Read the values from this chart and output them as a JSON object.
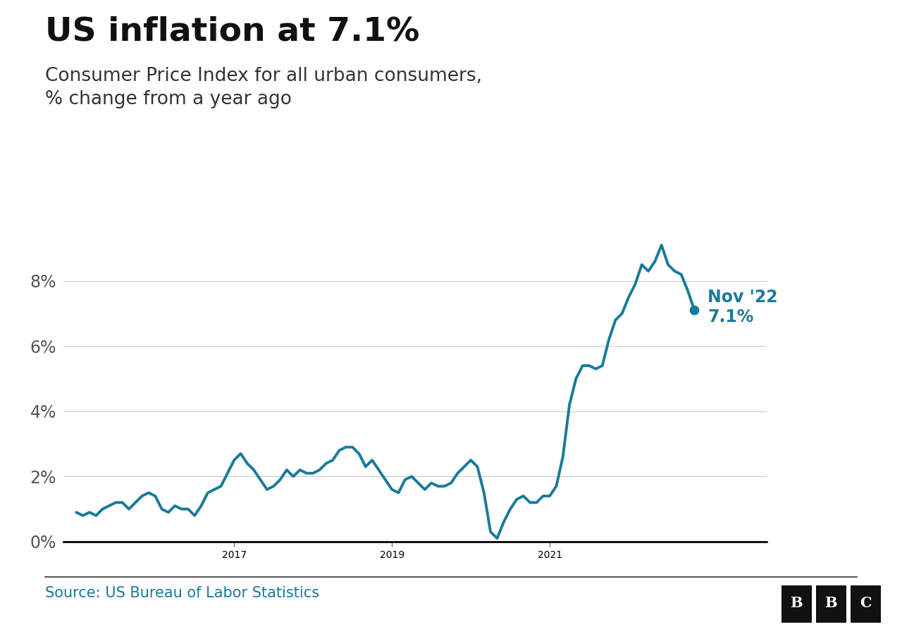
{
  "title": "US inflation at 7.1%",
  "subtitle": "Consumer Price Index for all urban consumers,\n% change from a year ago",
  "source": "Source: US Bureau of Labor Statistics",
  "line_color": "#1a7a9a",
  "annotation_label": "Nov '22\n7.1%",
  "annotation_value": 7.1,
  "background_color": "#ffffff",
  "ytick_labels": [
    "0%",
    "2%",
    "4%",
    "6%",
    "8%"
  ],
  "ytick_values": [
    0,
    2,
    4,
    6,
    8
  ],
  "values": [
    0.9,
    0.8,
    0.9,
    0.8,
    1.0,
    1.1,
    1.2,
    1.2,
    1.0,
    1.2,
    1.4,
    1.5,
    1.4,
    1.0,
    0.9,
    1.1,
    1.0,
    1.0,
    0.8,
    1.1,
    1.5,
    1.6,
    1.7,
    2.1,
    2.5,
    2.7,
    2.4,
    2.2,
    1.9,
    1.6,
    1.7,
    1.9,
    2.2,
    2.0,
    2.2,
    2.1,
    2.1,
    2.2,
    2.4,
    2.5,
    2.8,
    2.9,
    2.9,
    2.7,
    2.3,
    2.5,
    2.2,
    1.9,
    1.6,
    1.5,
    1.9,
    2.0,
    1.8,
    1.6,
    1.8,
    1.7,
    1.7,
    1.8,
    2.1,
    2.3,
    2.5,
    2.3,
    1.5,
    0.3,
    0.1,
    0.6,
    1.0,
    1.3,
    1.4,
    1.2,
    1.2,
    1.4,
    1.4,
    1.7,
    2.6,
    4.2,
    5.0,
    5.4,
    5.4,
    5.3,
    5.4,
    6.2,
    6.8,
    7.0,
    7.5,
    7.9,
    8.5,
    8.3,
    8.6,
    9.1,
    8.5,
    8.3,
    8.2,
    7.7,
    7.1
  ],
  "xtick_indices": [
    24,
    48,
    72
  ],
  "xtick_labels": [
    "2017",
    "2019",
    "2021"
  ],
  "title_fontsize": 34,
  "subtitle_fontsize": 19,
  "tick_fontsize": 17,
  "source_fontsize": 15,
  "annotation_fontsize": 17
}
